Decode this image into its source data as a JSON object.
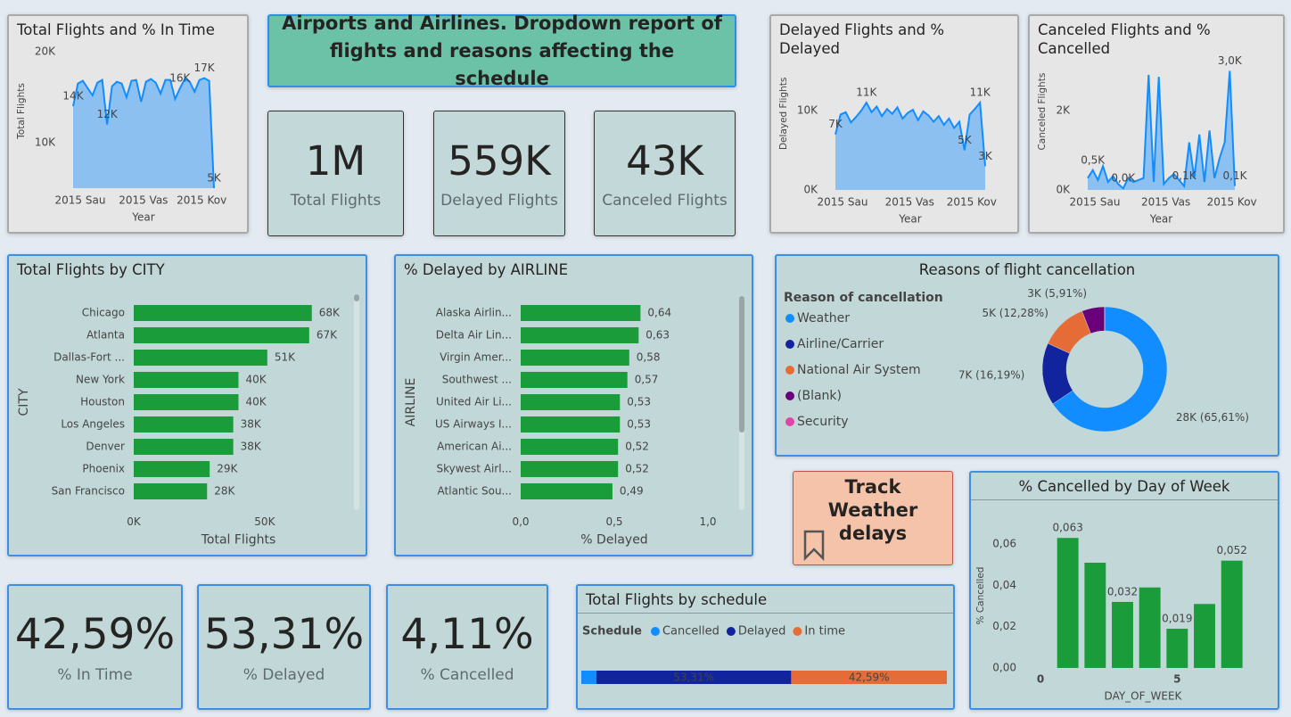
{
  "header": {
    "title": "Airports and Airlines. Dropdown report of flights and reasons affecting the schedule"
  },
  "cards": [
    {
      "value": "1M",
      "label": "Total Flights"
    },
    {
      "value": "559K",
      "label": "Delayed Flights"
    },
    {
      "value": "43K",
      "label": "Canceled Flights"
    },
    {
      "value": "42,59%",
      "label": "% In Time"
    },
    {
      "value": "53,31%",
      "label": "% Delayed"
    },
    {
      "value": "4,11%",
      "label": "% Cancelled"
    }
  ],
  "button": {
    "label": "Track Weather delays"
  },
  "chart_data": [
    {
      "type": "area",
      "title": "Total Flights and % In Time",
      "xlabel": "Year",
      "ylabel": "Total Flights",
      "color": "#118dff",
      "categories": [
        "2015 Sau",
        null,
        null,
        null,
        null,
        null,
        null,
        null,
        null,
        null,
        null,
        null,
        null,
        "2015 Vas",
        null,
        null,
        null,
        null,
        null,
        null,
        null,
        null,
        null,
        null,
        null,
        "2015 Kov",
        null,
        null,
        null,
        null
      ],
      "values": [
        14000,
        16500,
        16800,
        16000,
        15200,
        16600,
        16900,
        12000,
        16200,
        16700,
        16500,
        15000,
        16800,
        16900,
        14500,
        16700,
        17000,
        16600,
        15400,
        16900,
        16900,
        14800,
        16000,
        17000,
        16700,
        15600,
        16900,
        17100,
        16800,
        5000
      ],
      "value_labels": [
        "14K",
        null,
        null,
        null,
        null,
        null,
        null,
        "12K",
        null,
        null,
        null,
        null,
        null,
        null,
        null,
        null,
        null,
        null,
        null,
        null,
        null,
        null,
        "16K",
        null,
        null,
        null,
        null,
        "17K",
        null,
        "5K"
      ],
      "ylim": [
        5000,
        20000
      ],
      "yticks": [
        {
          "value": 10000,
          "label": "10K"
        },
        {
          "value": 20000,
          "label": "20K"
        }
      ]
    },
    {
      "type": "area",
      "title": "Delayed Flights and % Delayed",
      "xlabel": "Year",
      "ylabel": "Delayed Flights",
      "color": "#118dff",
      "categories": [
        "2015 Sau",
        null,
        null,
        null,
        null,
        null,
        null,
        null,
        null,
        null,
        null,
        null,
        null,
        "2015 Vas",
        null,
        null,
        null,
        null,
        null,
        null,
        null,
        null,
        null,
        null,
        null,
        "2015 Kov",
        null,
        null,
        null,
        null
      ],
      "values": [
        7000,
        9500,
        9800,
        8500,
        9200,
        10000,
        11000,
        9800,
        10500,
        9300,
        10200,
        9600,
        10400,
        9000,
        9700,
        10100,
        8800,
        9900,
        9400,
        8600,
        9300,
        8200,
        9000,
        7800,
        8600,
        5000,
        9500,
        10200,
        11000,
        3000
      ],
      "value_labels": [
        "7K",
        null,
        null,
        null,
        null,
        null,
        "11K",
        null,
        null,
        null,
        null,
        null,
        null,
        null,
        null,
        null,
        null,
        null,
        null,
        null,
        null,
        null,
        null,
        null,
        null,
        "5K",
        null,
        null,
        "11K",
        "3K"
      ],
      "ylim": [
        0,
        17000
      ],
      "yticks": [
        {
          "value": 0,
          "label": "0K"
        },
        {
          "value": 10000,
          "label": "10K"
        }
      ]
    },
    {
      "type": "area",
      "title": "Canceled Flights and % Cancelled",
      "xlabel": "Year",
      "ylabel": "Canceled Flights",
      "color": "#118dff",
      "categories": [
        "2015 Sau",
        null,
        null,
        null,
        null,
        null,
        null,
        null,
        null,
        null,
        null,
        null,
        null,
        null,
        "2015 Vas",
        null,
        null,
        null,
        null,
        null,
        null,
        null,
        null,
        null,
        null,
        null,
        null,
        "2015 Kov",
        null,
        null
      ],
      "values": [
        300,
        500,
        250,
        600,
        200,
        350,
        150,
        40,
        300,
        200,
        250,
        300,
        2900,
        200,
        2850,
        150,
        300,
        400,
        250,
        100,
        1200,
        300,
        1400,
        200,
        1500,
        300,
        800,
        1200,
        3000,
        100
      ],
      "value_labels": [
        null,
        "0,5K",
        null,
        null,
        null,
        null,
        null,
        "0,0K",
        null,
        null,
        null,
        null,
        null,
        null,
        null,
        null,
        null,
        null,
        null,
        "0,1K",
        null,
        null,
        null,
        null,
        null,
        null,
        null,
        null,
        "3,0K",
        "0,1K"
      ],
      "ylim": [
        0,
        3500
      ],
      "yticks": [
        {
          "value": 0,
          "label": "0K"
        },
        {
          "value": 2000,
          "label": "2K"
        }
      ]
    },
    {
      "type": "hbar",
      "title": "Total Flights by CITY",
      "xlabel": "Total Flights",
      "ylabel": "CITY",
      "color": "#1a9c3a",
      "categories": [
        "Chicago",
        "Atlanta",
        "Dallas-Fort ...",
        "New York",
        "Houston",
        "Los Angeles",
        "Denver",
        "Phoenix",
        "San Francisco"
      ],
      "values": [
        68000,
        67000,
        51000,
        40000,
        40000,
        38000,
        38000,
        29000,
        28000
      ],
      "value_labels": [
        "68K",
        "67K",
        "51K",
        "40K",
        "40K",
        "38K",
        "38K",
        "29K",
        "28K"
      ],
      "xlim": [
        0,
        80000
      ],
      "xticks": [
        {
          "value": 0,
          "label": "0K"
        },
        {
          "value": 50000,
          "label": "50K"
        }
      ]
    },
    {
      "type": "hbar",
      "title": "% Delayed by AIRLINE",
      "xlabel": "% Delayed",
      "ylabel": "AIRLINE",
      "color": "#1a9c3a",
      "categories": [
        "Alaska Airlin...",
        "Delta Air Lin...",
        "Virgin Amer...",
        "Southwest ...",
        "United Air Li...",
        "US Airways I...",
        "American Ai...",
        "Skywest Airl...",
        "Atlantic Sou..."
      ],
      "values": [
        0.64,
        0.63,
        0.58,
        0.57,
        0.53,
        0.53,
        0.52,
        0.52,
        0.49
      ],
      "value_labels": [
        "0,64",
        "0,63",
        "0,58",
        "0,57",
        "0,53",
        "0,53",
        "0,52",
        "0,52",
        "0,49"
      ],
      "xlim": [
        0,
        1
      ],
      "xticks": [
        {
          "value": 0,
          "label": "0,0"
        },
        {
          "value": 0.5,
          "label": "0,5"
        },
        {
          "value": 1,
          "label": "1,0"
        }
      ]
    },
    {
      "type": "donut",
      "title": "Reasons of flight cancellation",
      "legend_title": "Reason of cancellation",
      "categories": [
        "Weather",
        "Airline/Carrier",
        "National Air System",
        "(Blank)",
        "Security"
      ],
      "colors": [
        "#118dff",
        "#12239e",
        "#e66c37",
        "#6b007b",
        "#e044a7"
      ],
      "values": [
        28212,
        6962,
        5280,
        2541,
        5
      ],
      "value_labels": [
        "28K (65,61%)",
        "7K (16,19%)",
        "5K (12,28%)",
        "3K (5,91%)",
        null
      ]
    },
    {
      "type": "stacked_hbar",
      "title": "Total Flights by schedule",
      "legend_title": "Schedule",
      "series": [
        {
          "name": "Cancelled",
          "color": "#118dff",
          "values": [
            4.11
          ]
        },
        {
          "name": "Delayed",
          "color": "#12239e",
          "values": [
            53.31
          ],
          "value_labels": [
            "53,31%"
          ]
        },
        {
          "name": "In time",
          "color": "#e66c37",
          "values": [
            42.59
          ],
          "value_labels": [
            "42,59%"
          ]
        }
      ]
    },
    {
      "type": "bar",
      "title": "% Cancelled by Day of Week",
      "xlabel": "DAY_OF_WEEK",
      "ylabel": "% Cancelled",
      "color": "#1a9c3a",
      "x": [
        1,
        2,
        3,
        4,
        5,
        6,
        7
      ],
      "values": [
        0.063,
        0.051,
        0.032,
        0.039,
        0.019,
        0.031,
        0.052
      ],
      "value_labels": [
        "0,063",
        null,
        "0,032",
        null,
        "0,019",
        null,
        "0,052"
      ],
      "xlim": [
        0,
        7.5
      ],
      "xticks": [
        0,
        5
      ],
      "ylim": [
        0,
        0.07
      ],
      "yticks": [
        {
          "value": 0,
          "label": "0,00"
        },
        {
          "value": 0.02,
          "label": "0,02"
        },
        {
          "value": 0.04,
          "label": "0,04"
        },
        {
          "value": 0.06,
          "label": "0,06"
        }
      ]
    }
  ]
}
